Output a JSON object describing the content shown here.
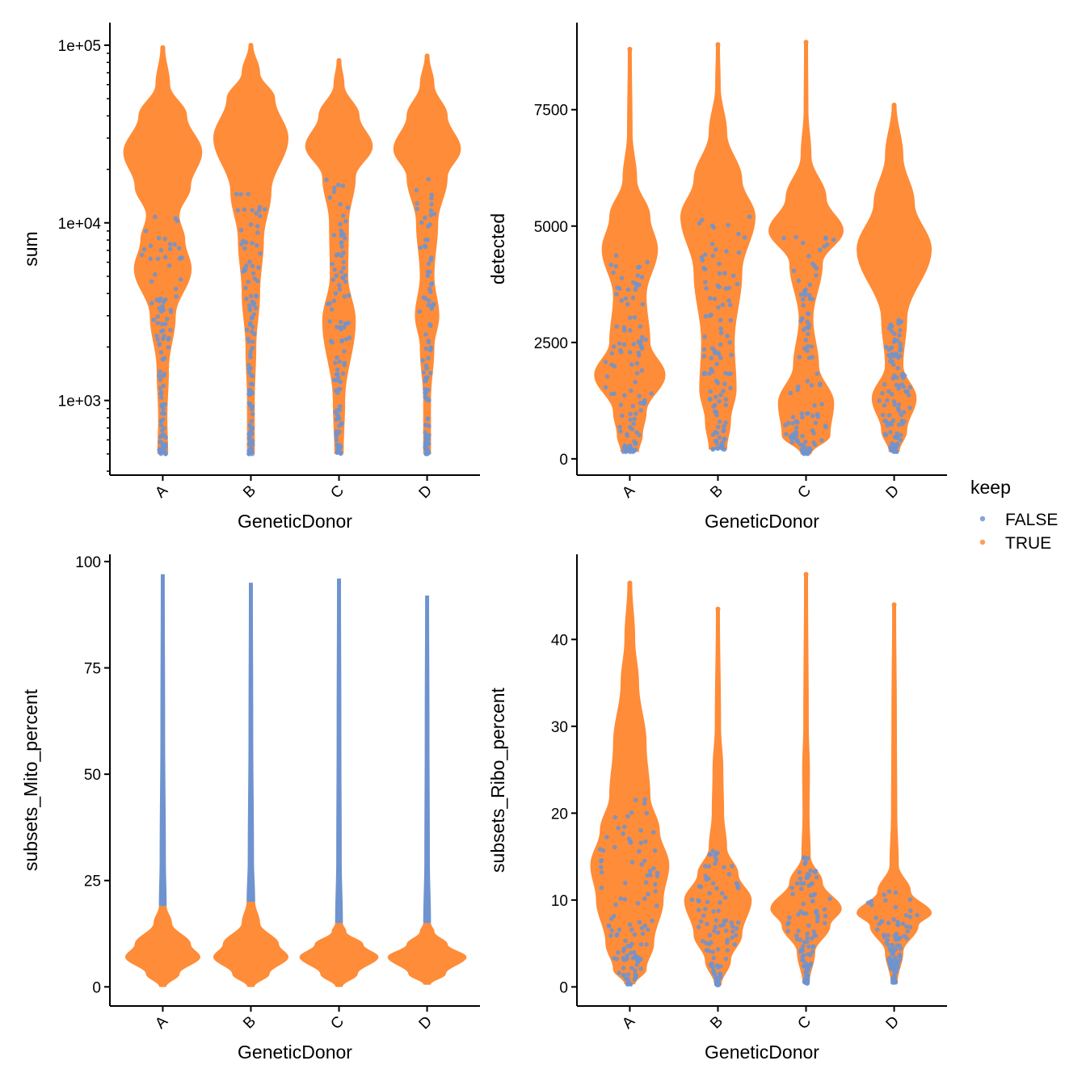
{
  "colors": {
    "FALSE": "#6f93cf",
    "TRUE": "#ff8c38",
    "stem": "#8a8a8a"
  },
  "legend": {
    "title": "keep",
    "entries": [
      "FALSE",
      "TRUE"
    ],
    "placement": "right"
  },
  "chart_data": [
    {
      "type": "violin",
      "xlabel": "GeneticDonor",
      "ylabel": "sum",
      "yscale": "log10",
      "ylim": [
        380,
        134000
      ],
      "categories": [
        "A",
        "B",
        "C",
        "D"
      ],
      "yticks": [
        1000,
        10000,
        100000
      ],
      "ytick_labels": [
        "1e+03",
        "1e+04",
        "1e+05"
      ],
      "violins": [
        {
          "min": 500,
          "max": 97000,
          "profile": [
            [
              500,
              0.1
            ],
            [
              800,
              0.08
            ],
            [
              1500,
              0.12
            ],
            [
              3000,
              0.3
            ],
            [
              5500,
              0.72
            ],
            [
              8000,
              0.55
            ],
            [
              11000,
              0.4
            ],
            [
              16000,
              0.7
            ],
            [
              25000,
              1.0
            ],
            [
              40000,
              0.6
            ],
            [
              60000,
              0.15
            ],
            [
              97000,
              0.02
            ]
          ]
        },
        {
          "min": 500,
          "max": 100000,
          "profile": [
            [
              500,
              0.06
            ],
            [
              1000,
              0.06
            ],
            [
              2000,
              0.1
            ],
            [
              4000,
              0.2
            ],
            [
              8000,
              0.3
            ],
            [
              15000,
              0.5
            ],
            [
              30000,
              0.95
            ],
            [
              50000,
              0.6
            ],
            [
              70000,
              0.2
            ],
            [
              100000,
              0.02
            ]
          ]
        },
        {
          "min": 500,
          "max": 82000,
          "profile": [
            [
              500,
              0.08
            ],
            [
              1000,
              0.12
            ],
            [
              2800,
              0.4
            ],
            [
              5000,
              0.2
            ],
            [
              10000,
              0.22
            ],
            [
              18000,
              0.4
            ],
            [
              27000,
              0.85
            ],
            [
              40000,
              0.5
            ],
            [
              60000,
              0.1
            ],
            [
              82000,
              0.02
            ]
          ]
        },
        {
          "min": 500,
          "max": 87000,
          "profile": [
            [
              500,
              0.06
            ],
            [
              1000,
              0.06
            ],
            [
              2000,
              0.15
            ],
            [
              3000,
              0.28
            ],
            [
              5000,
              0.15
            ],
            [
              10000,
              0.25
            ],
            [
              18000,
              0.5
            ],
            [
              26000,
              0.85
            ],
            [
              40000,
              0.5
            ],
            [
              60000,
              0.15
            ],
            [
              87000,
              0.02
            ]
          ]
        }
      ]
    },
    {
      "type": "violin",
      "xlabel": "GeneticDonor",
      "ylabel": "detected",
      "yscale": "linear",
      "ylim": [
        -350,
        9370
      ],
      "categories": [
        "A",
        "B",
        "C",
        "D"
      ],
      "yticks": [
        0,
        2500,
        5000,
        7500
      ],
      "ytick_labels": [
        "0",
        "2500",
        "5000",
        "7500"
      ],
      "violins": [
        {
          "min": 150,
          "max": 8800,
          "profile": [
            [
              150,
              0.2
            ],
            [
              500,
              0.3
            ],
            [
              1000,
              0.4
            ],
            [
              1800,
              0.9
            ],
            [
              2500,
              0.5
            ],
            [
              3500,
              0.4
            ],
            [
              4500,
              0.7
            ],
            [
              5200,
              0.5
            ],
            [
              6000,
              0.15
            ],
            [
              7000,
              0.03
            ],
            [
              8800,
              0.01
            ]
          ]
        },
        {
          "min": 200,
          "max": 8900,
          "profile": [
            [
              200,
              0.2
            ],
            [
              800,
              0.3
            ],
            [
              1500,
              0.45
            ],
            [
              2500,
              0.4
            ],
            [
              4000,
              0.6
            ],
            [
              5200,
              0.95
            ],
            [
              6000,
              0.6
            ],
            [
              7000,
              0.2
            ],
            [
              8000,
              0.03
            ],
            [
              8900,
              0.01
            ]
          ]
        },
        {
          "min": 100,
          "max": 8950,
          "profile": [
            [
              100,
              0.1
            ],
            [
              500,
              0.6
            ],
            [
              1200,
              0.7
            ],
            [
              2000,
              0.3
            ],
            [
              3000,
              0.15
            ],
            [
              4200,
              0.4
            ],
            [
              4900,
              0.95
            ],
            [
              5600,
              0.5
            ],
            [
              6500,
              0.1
            ],
            [
              7500,
              0.02
            ],
            [
              8950,
              0.01
            ]
          ]
        },
        {
          "min": 150,
          "max": 7600,
          "profile": [
            [
              150,
              0.1
            ],
            [
              600,
              0.3
            ],
            [
              1300,
              0.55
            ],
            [
              2000,
              0.2
            ],
            [
              3000,
              0.3
            ],
            [
              4500,
              0.95
            ],
            [
              5500,
              0.5
            ],
            [
              6500,
              0.2
            ],
            [
              7600,
              0.02
            ]
          ]
        }
      ]
    },
    {
      "type": "violin",
      "xlabel": "GeneticDonor",
      "ylabel": "subsets_Mito_percent",
      "yscale": "linear",
      "ylim": [
        -4.5,
        101.7
      ],
      "categories": [
        "A",
        "B",
        "C",
        "D"
      ],
      "yticks": [
        0,
        25,
        50,
        75,
        100
      ],
      "ytick_labels": [
        "0",
        "25",
        "50",
        "75",
        "100"
      ],
      "violins": [
        {
          "min": 0,
          "max": 97,
          "false_above": 19,
          "profile": [
            [
              0,
              0.05
            ],
            [
              3,
              0.4
            ],
            [
              7,
              0.95
            ],
            [
              10,
              0.7
            ],
            [
              15,
              0.2
            ],
            [
              19,
              0.06
            ],
            [
              30,
              0.04
            ],
            [
              60,
              0.02
            ],
            [
              97,
              0.01
            ]
          ]
        },
        {
          "min": 0,
          "max": 95,
          "false_above": 20,
          "profile": [
            [
              0,
              0.05
            ],
            [
              3,
              0.45
            ],
            [
              7,
              0.95
            ],
            [
              10,
              0.7
            ],
            [
              15,
              0.2
            ],
            [
              20,
              0.07
            ],
            [
              30,
              0.04
            ],
            [
              60,
              0.02
            ],
            [
              95,
              0.01
            ]
          ]
        },
        {
          "min": 0,
          "max": 96,
          "false_above": 15,
          "profile": [
            [
              0,
              0.05
            ],
            [
              3,
              0.45
            ],
            [
              7,
              1.0
            ],
            [
              10,
              0.6
            ],
            [
              13,
              0.15
            ],
            [
              15,
              0.06
            ],
            [
              30,
              0.03
            ],
            [
              60,
              0.02
            ],
            [
              96,
              0.01
            ]
          ]
        },
        {
          "min": 0.5,
          "max": 92,
          "false_above": 15,
          "profile": [
            [
              0.5,
              0.05
            ],
            [
              3,
              0.45
            ],
            [
              7,
              1.0
            ],
            [
              10,
              0.5
            ],
            [
              13,
              0.15
            ],
            [
              15,
              0.06
            ],
            [
              30,
              0.03
            ],
            [
              60,
              0.02
            ],
            [
              92,
              0.01
            ]
          ]
        }
      ]
    },
    {
      "type": "violin",
      "xlabel": "GeneticDonor",
      "ylabel": "subsets_Ribo_percent",
      "yscale": "linear",
      "ylim": [
        -2.2,
        49.8
      ],
      "categories": [
        "A",
        "B",
        "C",
        "D"
      ],
      "yticks": [
        0,
        10,
        20,
        30,
        40
      ],
      "ytick_labels": [
        "0",
        "10",
        "20",
        "30",
        "40"
      ],
      "violins": [
        {
          "min": 0.3,
          "max": 46.5,
          "profile": [
            [
              0.3,
              0.1
            ],
            [
              2,
              0.4
            ],
            [
              5,
              0.6
            ],
            [
              10,
              0.85
            ],
            [
              14,
              1.0
            ],
            [
              18,
              0.75
            ],
            [
              22,
              0.5
            ],
            [
              28,
              0.4
            ],
            [
              35,
              0.2
            ],
            [
              40,
              0.1
            ],
            [
              46.5,
              0.02
            ]
          ]
        },
        {
          "min": 0.2,
          "max": 43.5,
          "profile": [
            [
              0.2,
              0.05
            ],
            [
              3,
              0.3
            ],
            [
              6,
              0.6
            ],
            [
              10,
              0.85
            ],
            [
              13,
              0.5
            ],
            [
              16,
              0.2
            ],
            [
              20,
              0.12
            ],
            [
              25,
              0.1
            ],
            [
              30,
              0.04
            ],
            [
              43.5,
              0.01
            ]
          ]
        },
        {
          "min": 0.4,
          "max": 47.5,
          "profile": [
            [
              0.4,
              0.05
            ],
            [
              4,
              0.2
            ],
            [
              7,
              0.6
            ],
            [
              9,
              0.9
            ],
            [
              12,
              0.4
            ],
            [
              15,
              0.08
            ],
            [
              20,
              0.05
            ],
            [
              25,
              0.06
            ],
            [
              30,
              0.03
            ],
            [
              47.5,
              0.01
            ]
          ]
        },
        {
          "min": 0.5,
          "max": 44,
          "profile": [
            [
              0.5,
              0.05
            ],
            [
              4,
              0.2
            ],
            [
              7,
              0.6
            ],
            [
              8.5,
              0.95
            ],
            [
              11,
              0.4
            ],
            [
              14,
              0.08
            ],
            [
              20,
              0.04
            ],
            [
              30,
              0.03
            ],
            [
              44,
              0.01
            ]
          ]
        }
      ]
    }
  ]
}
